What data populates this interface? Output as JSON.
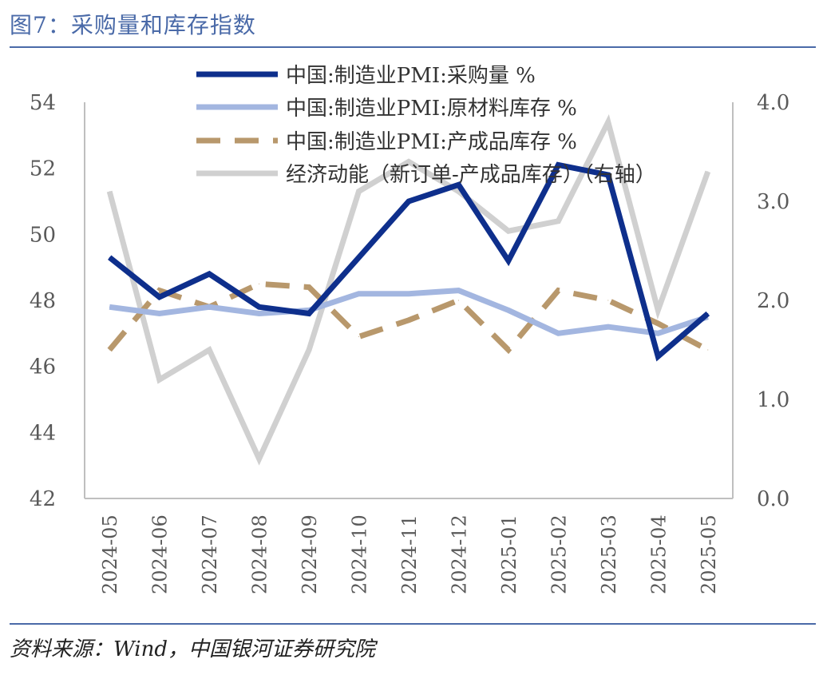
{
  "title": "图7：采购量和库存指数",
  "source": "资料来源：Wind，中国银河证券研究院",
  "chart_data": {
    "type": "line",
    "categories": [
      "2024-05",
      "2024-06",
      "2024-07",
      "2024-08",
      "2024-09",
      "2024-10",
      "2024-11",
      "2024-12",
      "2025-01",
      "2025-02",
      "2025-03",
      "2025-04",
      "2025-05"
    ],
    "left_axis": {
      "min": 42,
      "max": 54,
      "ticks": [
        "42",
        "44",
        "46",
        "48",
        "50",
        "52",
        "54"
      ],
      "tick_values": [
        42,
        44,
        46,
        48,
        50,
        52,
        54
      ]
    },
    "right_axis": {
      "min": 0,
      "max": 4,
      "ticks": [
        "0.0",
        "1.0",
        "2.0",
        "3.0",
        "4.0"
      ],
      "tick_values": [
        0,
        1,
        2,
        3,
        4
      ]
    },
    "legend_position": "top",
    "series": [
      {
        "name": "中国:制造业PMI:采购量 %",
        "axis": "left",
        "color": "#0e2f8c",
        "style": "solid",
        "values": [
          49.3,
          48.1,
          48.8,
          47.8,
          47.6,
          49.3,
          51.0,
          51.5,
          49.2,
          52.1,
          51.8,
          46.3,
          47.6
        ]
      },
      {
        "name": "中国:制造业PMI:原材料库存 %",
        "axis": "left",
        "color": "#a3b6e0",
        "style": "solid",
        "values": [
          47.8,
          47.6,
          47.8,
          47.6,
          47.7,
          48.2,
          48.2,
          48.3,
          47.7,
          47.0,
          47.2,
          47.0,
          47.5
        ]
      },
      {
        "name": "中国:制造业PMI:产成品库存 %",
        "axis": "left",
        "color": "#b8986c",
        "style": "dashed",
        "values": [
          46.5,
          48.3,
          47.8,
          48.5,
          48.4,
          46.9,
          47.4,
          48.0,
          46.5,
          48.3,
          48.0,
          47.3,
          46.5
        ]
      },
      {
        "name": "经济动能（新订单-产成品库存）（右轴）",
        "axis": "right",
        "color": "#d0d0d0",
        "style": "solid",
        "values": [
          3.1,
          1.2,
          1.5,
          0.4,
          1.5,
          3.1,
          3.4,
          3.1,
          2.7,
          2.8,
          3.8,
          1.9,
          3.3
        ]
      }
    ]
  }
}
